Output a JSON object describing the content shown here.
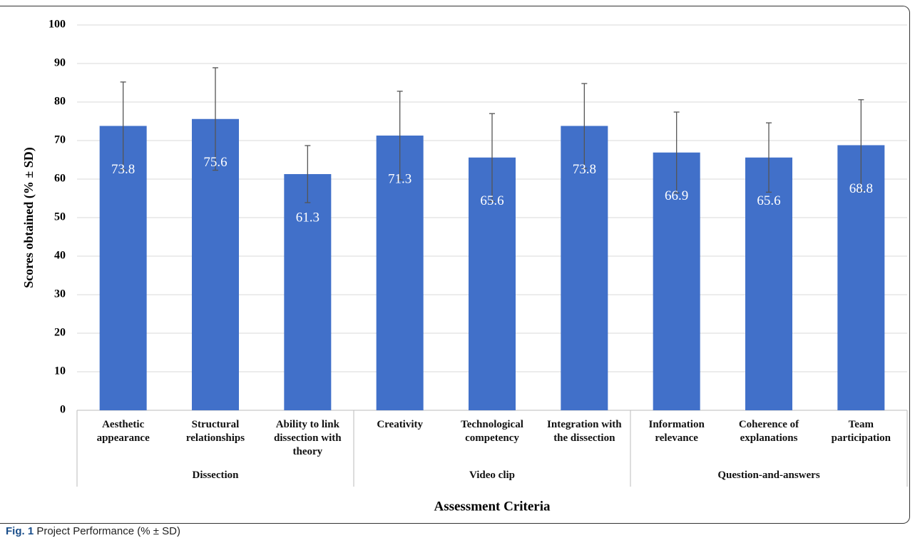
{
  "chart_data": {
    "type": "bar",
    "y_label": "Scores obtained (% ± SD)",
    "x_label": "Assessment Criteria",
    "caption_label": "Fig. 1",
    "caption": "Project Performance (% ± SD)",
    "categories": [
      "Aesthetic appearance",
      "Structural relationships",
      "Ability to link dissection with theory",
      "Creativity",
      "Technological competency",
      "Integration with the dissection",
      "Information relevance",
      "Coherence of explanations",
      "Team participation"
    ],
    "groups": [
      "Dissection",
      "Dissection",
      "Dissection",
      "Video clip",
      "Video clip",
      "Video clip",
      "Question-and-answers",
      "Question-and-answers",
      "Question-and-answers"
    ],
    "values": [
      73.8,
      75.6,
      61.3,
      71.3,
      65.6,
      73.8,
      66.9,
      65.6,
      68.8
    ],
    "errors": [
      11.4,
      13.3,
      7.4,
      11.5,
      11.4,
      11.0,
      10.5,
      9.0,
      11.8
    ],
    "color": "#4170c9",
    "error_color": "#555555",
    "ylim": [
      0,
      100
    ],
    "yticks": [
      0,
      10,
      20,
      30,
      40,
      50,
      60,
      70,
      80,
      90,
      100
    ],
    "grid": true
  }
}
